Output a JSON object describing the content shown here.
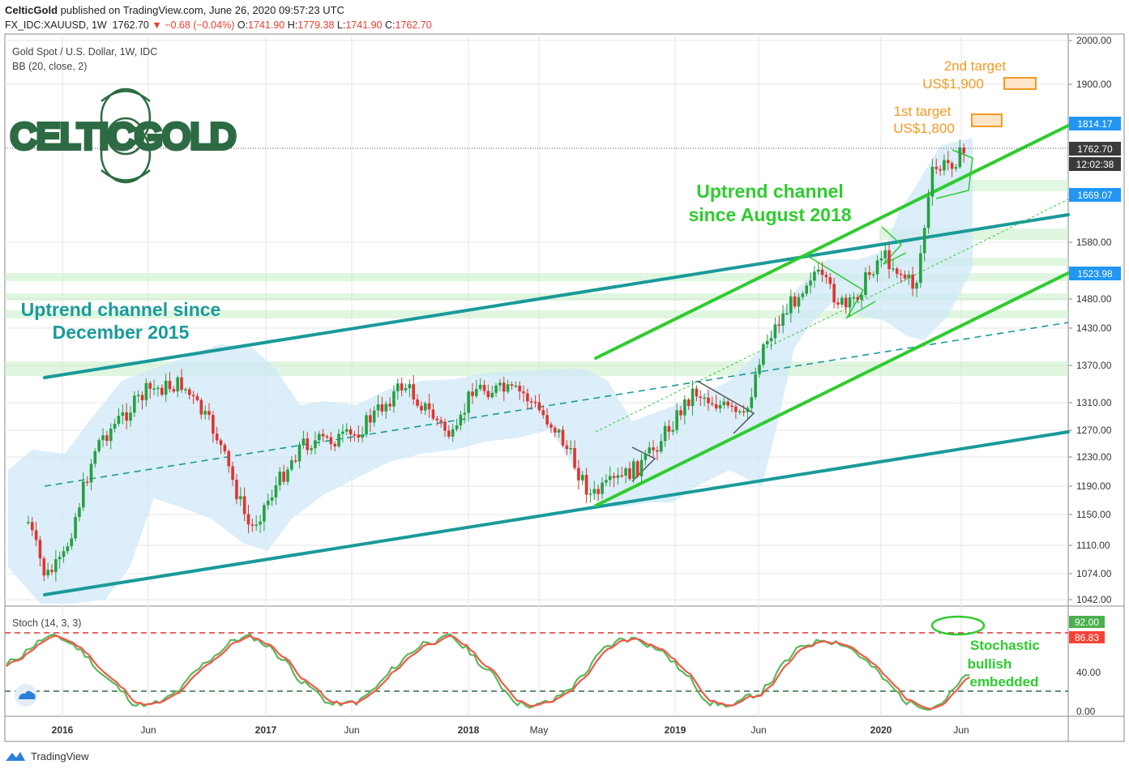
{
  "header": {
    "author": "CelticGold",
    "published": "published on TradingView.com, June 26, 2020 09:57:23 UTC",
    "symbol": "FX_IDC:XAUUSD, 1W",
    "last": "1762.70",
    "change": "▼ −0.68 (−0.04%)",
    "o_label": "O:",
    "o": "1741.90",
    "h_label": "H:",
    "h": "1779.38",
    "l_label": "L:",
    "l": "1741.90",
    "c_label": "C:",
    "c": "1762.70"
  },
  "chart_title": "Gold Spot / U.S. Dollar, 1W, IDC",
  "indicator": "BB (20, close, 2)",
  "logo_text": "CELTICGOLD",
  "annotations": {
    "channel_2015": [
      "Uptrend channel since",
      "December 2015"
    ],
    "channel_2018": [
      "Uptrend channel",
      "since August 2018"
    ],
    "target1": [
      "1st target",
      "US$1,800"
    ],
    "target2": [
      "2nd target",
      "US$1,900"
    ],
    "stoch_note": [
      "Stochastic",
      "bullish",
      "embedded"
    ]
  },
  "price_axis": [
    "2000.00",
    "1900.00",
    "1580.00",
    "1480.00",
    "1430.00",
    "1370.00",
    "1310.00",
    "1270.00",
    "1230.00",
    "1190.00",
    "1150.00",
    "1110.00",
    "1074.00",
    "1042.00"
  ],
  "price_badges": [
    {
      "label": "1814.17",
      "color": "#2196f3"
    },
    {
      "label": "1762.70",
      "color": "#3a3a3a"
    },
    {
      "label": "12:02:38",
      "color": "#3a3a3a"
    },
    {
      "label": "1669.07",
      "color": "#2196f3"
    },
    {
      "label": "1523.98",
      "color": "#2196f3"
    }
  ],
  "stoch": {
    "label": "Stoch (14, 3, 3)",
    "axis": [
      "40.00",
      "0.00"
    ],
    "badges": [
      {
        "label": "92.00",
        "color": "#4caf50"
      },
      {
        "label": "86.83",
        "color": "#f44336"
      }
    ]
  },
  "time_axis": [
    "2016",
    "Jun",
    "2017",
    "Jun",
    "2018",
    "May",
    "2019",
    "Jun",
    "2020",
    "Jun"
  ],
  "footer": {
    "brand": "TradingView"
  },
  "colors": {
    "up": "#26a041",
    "down": "#e0342f",
    "bb_fill": "#cfe8f7",
    "teal": "#1a9a9a",
    "green": "#2ecc2e",
    "orange": "#f29b24"
  },
  "chart_data": {
    "type": "line",
    "title": "Gold Spot / U.S. Dollar, 1W, IDC",
    "ylim": [
      1040,
      2000
    ],
    "series": [
      {
        "x": [
          "2015-11",
          "2015-12",
          "2016-01",
          "2016-03",
          "2016-06",
          "2016-08",
          "2016-10",
          "2016-12",
          "2017-03",
          "2017-06",
          "2017-09",
          "2017-12",
          "2018-01",
          "2018-04",
          "2018-06",
          "2018-08",
          "2018-11",
          "2019-01",
          "2019-02",
          "2019-05",
          "2019-06",
          "2019-09",
          "2019-11",
          "2020-01",
          "2020-03",
          "2020-04",
          "2020-06"
        ],
        "values": [
          1140,
          1070,
          1090,
          1250,
          1330,
          1340,
          1265,
          1130,
          1250,
          1260,
          1340,
          1255,
          1335,
          1325,
          1270,
          1175,
          1220,
          1290,
          1330,
          1285,
          1400,
          1530,
          1460,
          1560,
          1500,
          1720,
          1762.7
        ]
      }
    ]
  }
}
